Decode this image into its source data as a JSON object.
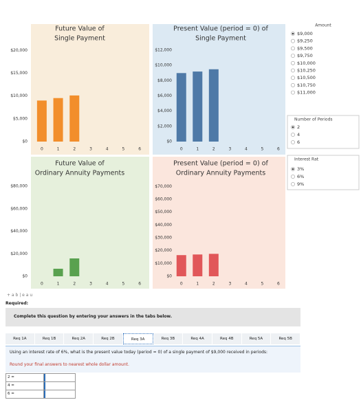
{
  "chart_data": [
    {
      "type": "bar",
      "title": [
        "Future Value of",
        "Single Payment"
      ],
      "x": [
        0,
        1,
        2
      ],
      "values": [
        9000,
        9540,
        10112
      ],
      "color": "#f28e2b",
      "background": "#f9eddb",
      "xlim": [
        -0.5,
        6.5
      ],
      "xticks": [
        0,
        1,
        2,
        3,
        4,
        5,
        6
      ],
      "ylim": [
        0,
        22000
      ],
      "yticks": [
        {
          "value": 0,
          "label": "$0"
        },
        {
          "value": 5000,
          "label": "$5,000"
        },
        {
          "value": 10000,
          "label": "$10,000"
        },
        {
          "value": 15000,
          "label": "$15,000"
        },
        {
          "value": 20000,
          "label": "$20,000"
        }
      ],
      "grid": false
    },
    {
      "type": "bar",
      "title": [
        "Present Value (period = 0) of",
        "Single Payment"
      ],
      "x": [
        0,
        1,
        2
      ],
      "values": [
        9000,
        9200,
        9500
      ],
      "color": "#4e79a7",
      "background": "#dce9f3",
      "xlim": [
        -0.5,
        6.3
      ],
      "xticks": [
        0,
        1,
        2,
        3,
        4,
        5,
        6
      ],
      "ylim": [
        0,
        13000
      ],
      "yticks": [
        {
          "value": 0,
          "label": "$0"
        },
        {
          "value": 2000,
          "label": "$2,000"
        },
        {
          "value": 4000,
          "label": "$4,000"
        },
        {
          "value": 6000,
          "label": "$6,000"
        },
        {
          "value": 8000,
          "label": "$8,000"
        },
        {
          "value": 10000,
          "label": "$10,000"
        },
        {
          "value": 12000,
          "label": "$12,000"
        }
      ],
      "grid": false
    },
    {
      "type": "bar",
      "title": [
        "Future Value of",
        "Ordinary Annuity Payments"
      ],
      "x": [
        1,
        2
      ],
      "values": [
        6700,
        15900
      ],
      "color": "#59a14f",
      "background": "#e6f0dc",
      "xlim": [
        -0.5,
        6.5
      ],
      "xticks": [
        0,
        1,
        2,
        3,
        4,
        5,
        6
      ],
      "ylim": [
        0,
        85000
      ],
      "yticks": [
        {
          "value": 0,
          "label": "$0"
        },
        {
          "value": 20000,
          "label": "$20,000"
        },
        {
          "value": 40000,
          "label": "$40,000"
        },
        {
          "value": 60000,
          "label": "$60,000"
        },
        {
          "value": 80000,
          "label": "$80,000"
        }
      ],
      "grid": false
    },
    {
      "type": "bar",
      "title": [
        "Present Value (period = 0) of",
        "Ordinary Annuity Payments"
      ],
      "x": [
        0,
        1,
        2
      ],
      "values": [
        16500,
        17000,
        17500
      ],
      "color": "#e15759",
      "background": "#fbe6dd",
      "xlim": [
        -0.5,
        6.3
      ],
      "xticks": [
        0,
        1,
        2,
        3,
        4,
        5,
        6
      ],
      "ylim": [
        0,
        75000
      ],
      "yticks": [
        {
          "value": 0,
          "label": "$0"
        },
        {
          "value": 10000,
          "label": "$10,000"
        },
        {
          "value": 20000,
          "label": "$20,000"
        },
        {
          "value": 30000,
          "label": "$30,000"
        },
        {
          "value": 40000,
          "label": "$40,000"
        },
        {
          "value": 50000,
          "label": "$50,000"
        },
        {
          "value": 60000,
          "label": "$60,000"
        },
        {
          "value": 70000,
          "label": "$70,000"
        }
      ],
      "grid": false
    }
  ],
  "filters": [
    {
      "title": "Amount",
      "options": [
        "$9,000",
        "$9,250",
        "$9,500",
        "$9,750",
        "$10,000",
        "$10,250",
        "$10,500",
        "$10,750",
        "$11,000"
      ],
      "selected": 0
    },
    {
      "title": "Number of Periods",
      "options": [
        "2",
        "4",
        "6"
      ],
      "selected": 0
    },
    {
      "title": "Interest Rat",
      "options": [
        "3%",
        "6%",
        "9%"
      ],
      "selected": 0
    }
  ],
  "logo": "+ a b | e a u",
  "required": "Required:",
  "instruction": "Complete this question by entering your answers in the tabs below.",
  "tabs": [
    "Req 1A",
    "Req 1B",
    "Req 2A",
    "Req 2B",
    "Req 3A",
    "Req 3B",
    "Req 4A",
    "Req 4B",
    "Req 5A",
    "Req 5B"
  ],
  "active_tab": 4,
  "question": "Using an interest rate of 6%, what is the present value today (period = 0) of a single payment of $9,000 received in periods:",
  "note": "Round your final answers to nearest whole dollar amount.",
  "answers": [
    "2 =",
    "4 =",
    "6 ="
  ]
}
